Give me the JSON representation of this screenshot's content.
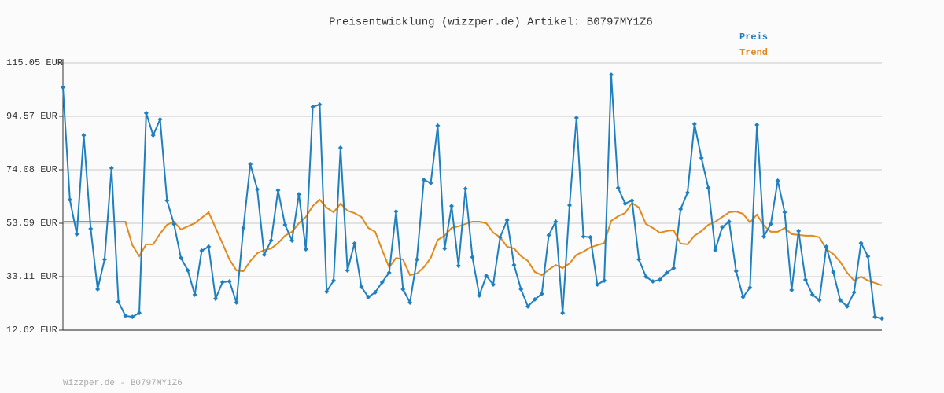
{
  "chart_data": {
    "type": "line",
    "title": "Preisentwicklung (wizzper.de) Artikel: B0797MY1Z6",
    "footer": "Wizzper.de - B0797MY1Z6",
    "ylim": [
      12.62,
      115.05
    ],
    "yticks": [
      {
        "value": 12.62,
        "label": "12.62 EUR"
      },
      {
        "value": 33.11,
        "label": "33.11 EUR"
      },
      {
        "value": 53.59,
        "label": "53.59 EUR"
      },
      {
        "value": 74.08,
        "label": "74.08 EUR"
      },
      {
        "value": 94.57,
        "label": "94.57 EUR"
      },
      {
        "value": 115.05,
        "label": "115.05 EUR"
      }
    ],
    "grid": true,
    "legend": "top-right",
    "series": [
      {
        "name": "Preis",
        "color": "#1f7fbf",
        "markers": true,
        "values": [
          105.7,
          62.6,
          49.4,
          87.3,
          51.5,
          28.3,
          39.7,
          74.7,
          23.5,
          18.1,
          17.7,
          19.2,
          95.8,
          87.3,
          93.4,
          62.3,
          53.3,
          40.3,
          35.5,
          26.2,
          43.1,
          44.6,
          24.7,
          31.0,
          31.3,
          23.2,
          51.8,
          76.2,
          66.6,
          41.5,
          47.0,
          66.2,
          53.0,
          47.0,
          64.7,
          43.6,
          98.2,
          99.1,
          27.4,
          31.6,
          82.5,
          35.5,
          45.8,
          29.2,
          25.3,
          27.1,
          31.0,
          34.6,
          58.1,
          28.3,
          23.2,
          39.7,
          70.2,
          69.0,
          91.0,
          43.9,
          60.2,
          37.3,
          66.8,
          40.6,
          25.9,
          33.4,
          30.1,
          48.2,
          54.8,
          37.6,
          28.3,
          21.7,
          24.4,
          26.5,
          49.0,
          54.2,
          19.2,
          60.5,
          94.0,
          48.5,
          48.2,
          30.1,
          31.6,
          110.5,
          67.1,
          61.1,
          62.3,
          39.7,
          33.1,
          31.3,
          31.9,
          34.6,
          36.4,
          59.0,
          65.3,
          91.6,
          78.6,
          67.1,
          43.3,
          52.1,
          54.2,
          35.2,
          25.3,
          28.9,
          91.3,
          48.5,
          53.3,
          69.9,
          57.8,
          28.0,
          50.6,
          31.9,
          26.2,
          24.1,
          44.6,
          34.9,
          24.1,
          21.7,
          27.1,
          46.0,
          40.9,
          17.7,
          17.1
        ]
      },
      {
        "name": "Trend",
        "color": "#e08a1e",
        "markers": false,
        "values": [
          54.2,
          54.2,
          54.2,
          54.2,
          54.2,
          54.2,
          54.2,
          54.2,
          54.2,
          54.2,
          45.2,
          41.0,
          45.5,
          45.5,
          49.6,
          53.0,
          54.2,
          51.2,
          52.4,
          53.6,
          55.7,
          57.8,
          51.8,
          45.8,
          39.7,
          35.5,
          35.2,
          39.1,
          42.1,
          43.3,
          43.9,
          46.0,
          48.8,
          50.3,
          53.6,
          56.0,
          60.2,
          62.6,
          59.6,
          57.8,
          61.1,
          58.4,
          57.5,
          56.0,
          51.8,
          50.3,
          43.3,
          36.7,
          40.3,
          39.7,
          33.7,
          34.3,
          36.7,
          40.3,
          47.2,
          48.8,
          51.8,
          52.4,
          53.3,
          54.2,
          54.2,
          53.6,
          50.0,
          48.2,
          44.6,
          43.9,
          41.0,
          39.1,
          34.9,
          33.7,
          35.8,
          37.6,
          36.4,
          38.2,
          41.5,
          42.7,
          44.3,
          45.2,
          46.0,
          54.5,
          56.3,
          57.5,
          61.4,
          59.6,
          53.3,
          51.8,
          50.0,
          50.6,
          50.9,
          45.8,
          45.5,
          48.8,
          50.6,
          53.0,
          54.2,
          56.0,
          57.8,
          58.1,
          57.2,
          53.9,
          56.9,
          52.7,
          50.3,
          50.3,
          51.8,
          49.4,
          49.1,
          48.8,
          48.8,
          48.2,
          43.6,
          41.8,
          38.8,
          34.6,
          31.6,
          33.1,
          31.6,
          30.7,
          29.8
        ]
      }
    ]
  }
}
